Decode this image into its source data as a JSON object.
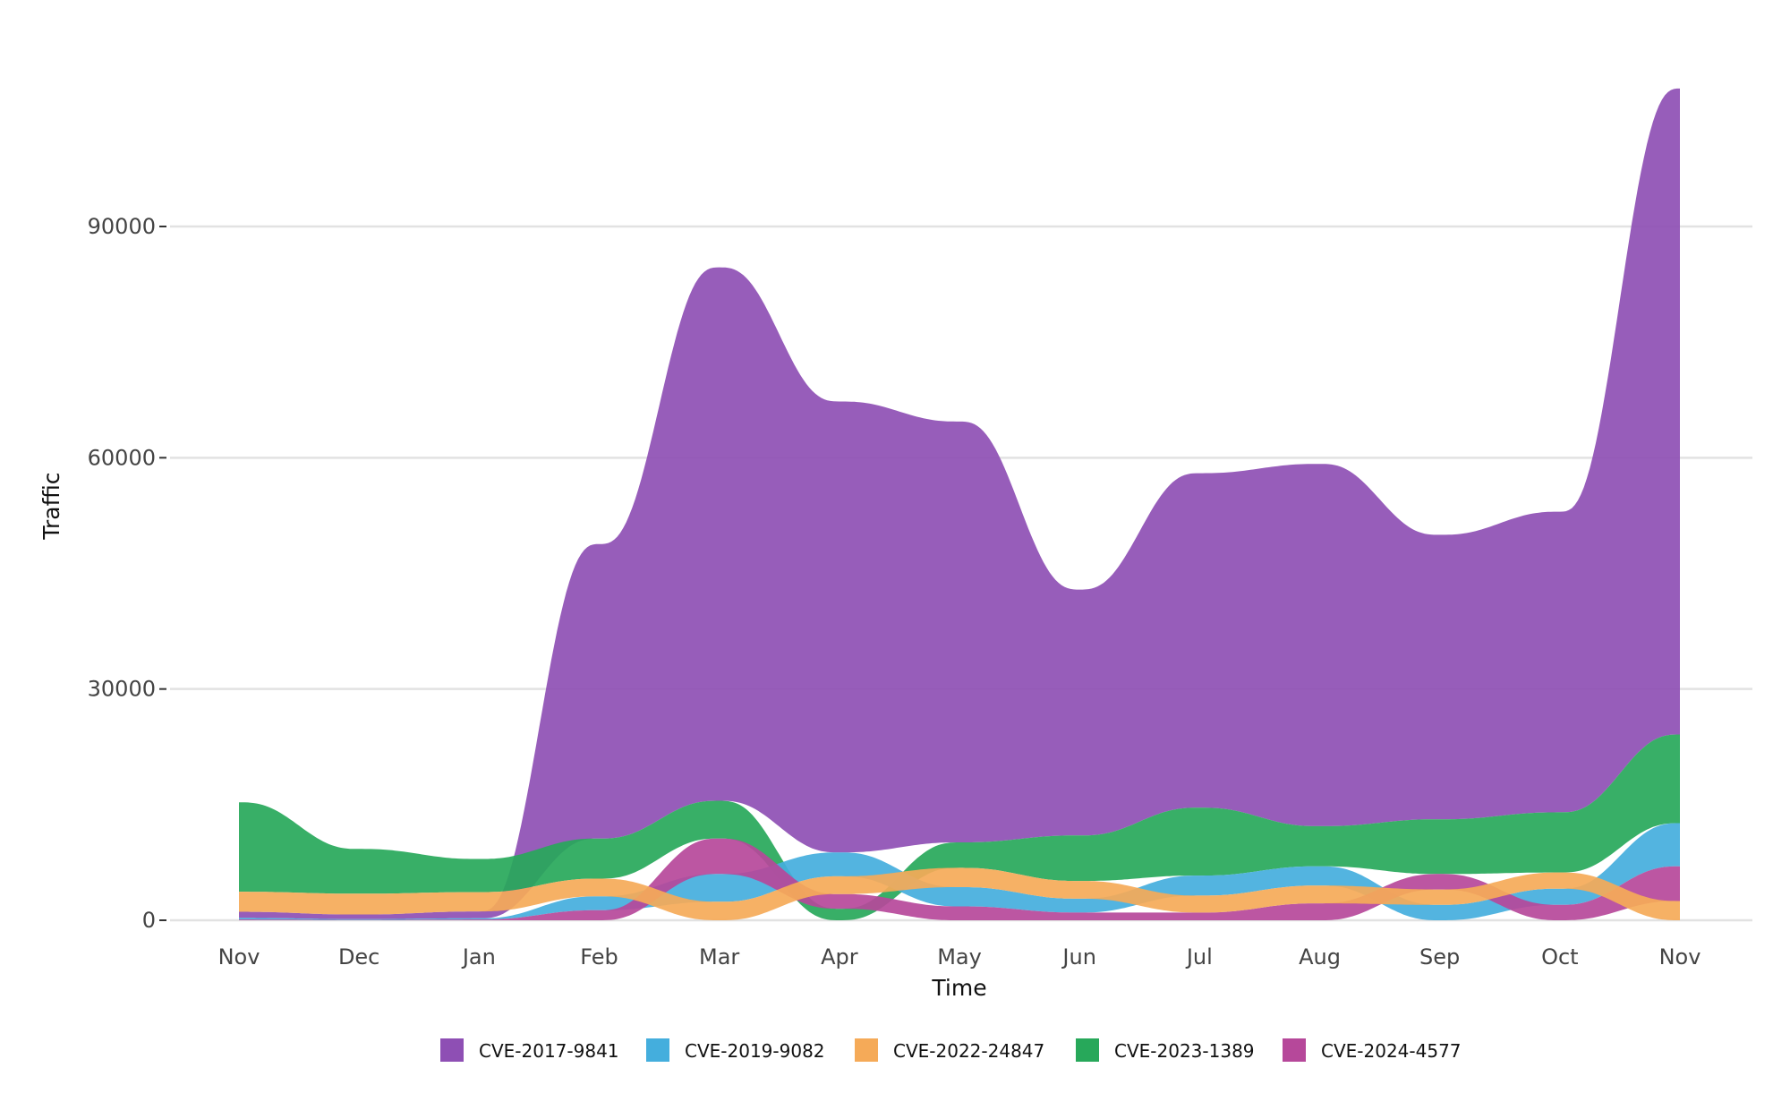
{
  "chart_data": {
    "type": "area",
    "subtype": "ranked-stacked-area",
    "title": "",
    "xlabel": "Time",
    "ylabel": "Traffic",
    "categories": [
      "Nov",
      "Dec",
      "Jan",
      "Feb",
      "Mar",
      "Apr",
      "May",
      "Jun",
      "Jul",
      "Aug",
      "Sep",
      "Oct",
      "Nov"
    ],
    "ylim": [
      0,
      110000
    ],
    "yticks": [
      0,
      30000,
      60000,
      90000
    ],
    "grid": "horizontal",
    "legend": "bottom",
    "series": [
      {
        "name": "CVE-2017-9841",
        "color": "#8e4fb4",
        "values": [
          800,
          600,
          900,
          38200,
          69200,
          58500,
          54600,
          31900,
          43400,
          47000,
          36900,
          39000,
          83800
        ]
      },
      {
        "name": "CVE-2019-9082",
        "color": "#44aedd",
        "values": [
          200,
          100,
          150,
          1800,
          3600,
          3100,
          2500,
          1800,
          2600,
          2500,
          2000,
          2100,
          5600
        ]
      },
      {
        "name": "CVE-2022-24847",
        "color": "#f5aa58",
        "values": [
          2600,
          2700,
          2500,
          2300,
          2400,
          2300,
          2500,
          2300,
          2200,
          2300,
          2000,
          2100,
          2500
        ]
      },
      {
        "name": "CVE-2023-1389",
        "color": "#27a85a",
        "values": [
          11600,
          5800,
          4300,
          5200,
          4900,
          1500,
          3300,
          5900,
          8800,
          5200,
          7100,
          7800,
          11500
        ]
      },
      {
        "name": "CVE-2024-4577",
        "color": "#b6489a",
        "values": [
          100,
          50,
          100,
          1300,
          4600,
          1900,
          1800,
          1000,
          1000,
          2200,
          2000,
          2000,
          4500
        ]
      }
    ]
  }
}
